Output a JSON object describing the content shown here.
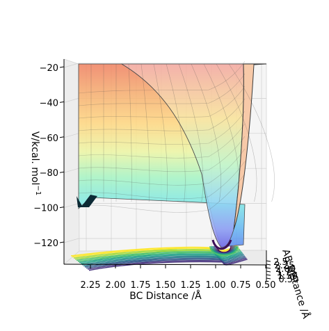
{
  "chart_data": {
    "type": "surface",
    "title": "",
    "xlabel": "BC Distance /Å",
    "zlabel": "V/kcal. mol",
    "zlabel_sup": "−1",
    "ylabel": "AB Distance /Å",
    "xticks": [
      "2.25",
      "2.00",
      "1.75",
      "1.50",
      "1.25",
      "1.00",
      "0.75",
      "0.50"
    ],
    "xlim": [
      0.5,
      2.5
    ],
    "zticks": [
      "−20",
      "−40",
      "−60",
      "−80",
      "−100",
      "−120"
    ],
    "zlim": [
      -135,
      -18
    ],
    "yticks": [
      "2.5",
      "2.25",
      "2.00",
      "1.75",
      "1.50",
      "0.50"
    ],
    "colormap_surface": "jet",
    "colormap_contour": "viridis",
    "surface": {
      "plateau_energy": -101,
      "well_min_energy": -130,
      "well_position_bc": 1.0,
      "repulsive_wall_energy": -20
    },
    "colors": {
      "pane": "#f2f2f2",
      "grid": "#cfcfcf",
      "surface_edge": "#3c3c3c",
      "contour_dark": "#3d0f58",
      "contour_light": "#f2e53a"
    }
  }
}
